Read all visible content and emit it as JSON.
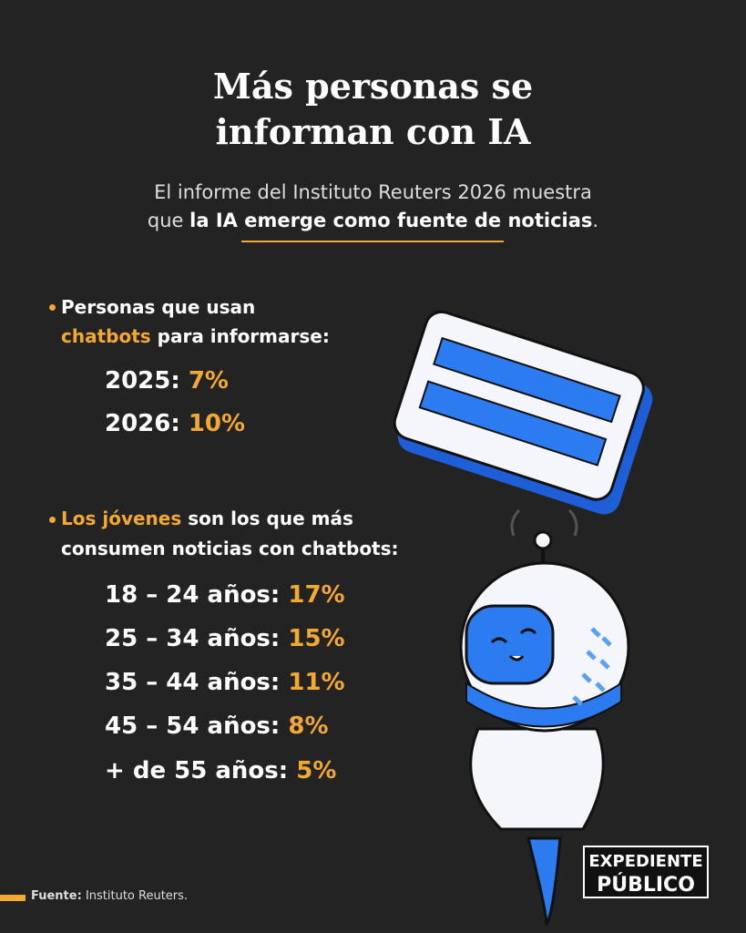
{
  "header": {
    "title_lines": [
      "Más personas se",
      "informan con IA"
    ],
    "subtitle": {
      "line1": "El informe del Instituto Reuters 2026 muestra",
      "line2_start": "que",
      "line2_bold": "la IA emerge como fuente de noticias",
      "line2_end": "."
    }
  },
  "section1": {
    "heading_line1": "Personas que usan",
    "heading_highlight": "chatbots",
    "heading_rest": "para informarse:",
    "items": [
      {
        "label": "2025:",
        "value": "7%"
      },
      {
        "label": "2026:",
        "value": "10%"
      }
    ]
  },
  "section2": {
    "heading_highlight": "Los jóvenes",
    "heading_rest": "son los que más",
    "heading_line2": "consumen noticias con chatbots:",
    "items": [
      {
        "label": "18 – 24 años:",
        "value": "17%"
      },
      {
        "label": "25 – 34 años:",
        "value": "15%"
      },
      {
        "label": "35 – 44 años:",
        "value": "11%"
      },
      {
        "label": "45 – 54 años:",
        "value": "8%"
      },
      {
        "label": "+ de 55 años:",
        "value": "5%"
      }
    ]
  },
  "footer": {
    "source_label": "Fuente:",
    "source": "Instituto Reuters."
  },
  "logo": {
    "line1": "EXPEDIENTE",
    "line2": "PÚBLICO"
  }
}
